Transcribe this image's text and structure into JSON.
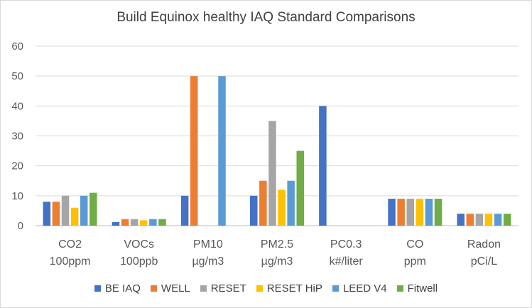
{
  "chart_data": {
    "type": "bar",
    "title": "Build Equinox healthy IAQ Standard Comparisons",
    "categories": [
      [
        "CO2",
        "100ppm"
      ],
      [
        "VOCs",
        "100ppb"
      ],
      [
        "PM10",
        "µg/m3"
      ],
      [
        "PM2.5",
        "µg/m3"
      ],
      [
        "PC0.3",
        "k#/liter"
      ],
      [
        "CO",
        "ppm"
      ],
      [
        "Radon",
        "pCi/L"
      ]
    ],
    "series": [
      {
        "name": "BE IAQ",
        "color": "#4472c4",
        "values": [
          8,
          1.2,
          10,
          10,
          40,
          9,
          4
        ]
      },
      {
        "name": "WELL",
        "color": "#ed7d31",
        "values": [
          8,
          2.2,
          50,
          15,
          0,
          9,
          4
        ]
      },
      {
        "name": "RESET",
        "color": "#a5a5a5",
        "values": [
          10,
          2.2,
          0,
          35,
          0,
          9,
          4
        ]
      },
      {
        "name": "RESET HiP",
        "color": "#ffc000",
        "values": [
          6,
          1.8,
          0,
          12,
          0,
          9,
          4
        ]
      },
      {
        "name": "LEED V4",
        "color": "#5b9bd5",
        "values": [
          10,
          2.2,
          50,
          15,
          0,
          9,
          4
        ]
      },
      {
        "name": "Fitwell",
        "color": "#70ad47",
        "values": [
          11,
          2.2,
          0,
          25,
          0,
          9,
          4
        ]
      }
    ],
    "ylim": [
      0,
      60
    ],
    "yticks": [
      0,
      10,
      20,
      30,
      40,
      50,
      60
    ],
    "grid": true,
    "legend_position": "bottom"
  }
}
